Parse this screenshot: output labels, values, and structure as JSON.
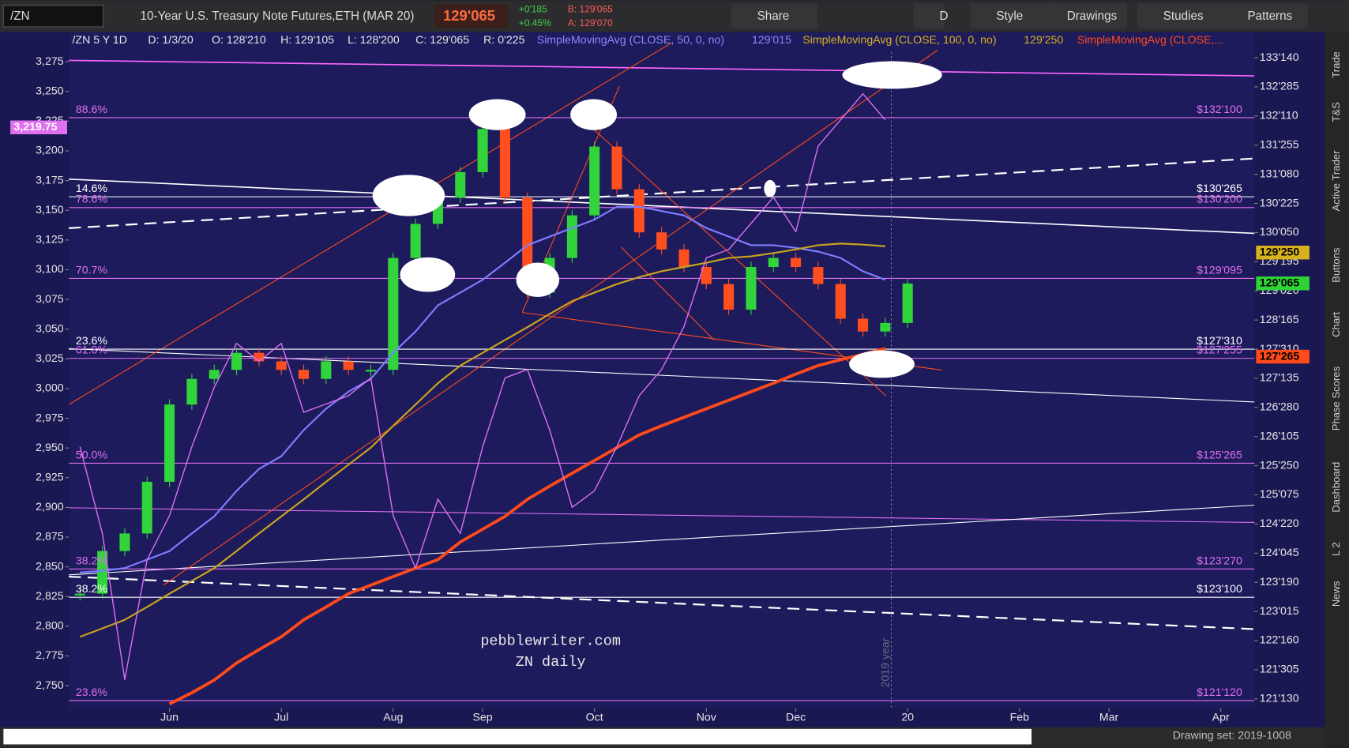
{
  "ui": {
    "symbol": "/ZN",
    "instrument": "10-Year U.S. Treasury Note Futures,ETH (MAR 20)",
    "last": "129'065",
    "change": "+0'185",
    "change_pct": "+0.45%",
    "bid": "B: 129'065",
    "ask": "A: 129'070",
    "toolbar": [
      "Share",
      "D",
      "Style",
      "Drawings",
      "Studies",
      "Patterns"
    ],
    "info": {
      "chart": "/ZN 5 Y 1D",
      "date": "D: 1/3/20",
      "open": "O: 128'210",
      "high": "H: 129'105",
      "low": "L: 128'200",
      "close": "C: 129'065",
      "range": "R: 0'225",
      "sma50_value": "129'015",
      "sma100_value": "129'250"
    },
    "side_tabs": [
      "Trade",
      "T&S",
      "Active Trader",
      "Buttons",
      "Chart",
      "Phase Scores",
      "Dashboard",
      "L 2",
      "News"
    ],
    "drawing_set": "Drawing set: 2019-1008",
    "watermark": [
      "pebblewriter.com",
      "ZN daily"
    ],
    "year_label": "2019 year"
  },
  "chart_data": {
    "type": "candlestick",
    "categories": [
      null,
      null,
      null,
      null,
      "Jun",
      null,
      null,
      null,
      null,
      "Jul",
      null,
      null,
      null,
      null,
      "Aug",
      null,
      null,
      null,
      "Sep",
      null,
      null,
      null,
      null,
      "Oct",
      null,
      null,
      null,
      null,
      "Nov",
      null,
      null,
      null,
      "Dec",
      null,
      null,
      null,
      null,
      "20",
      null,
      null,
      null,
      null,
      "Feb",
      null,
      null,
      null,
      "Mar",
      null,
      null,
      null,
      null,
      "Apr",
      null
    ],
    "series": [
      {
        "name": "/ZN 5 Y 1D",
        "type": "candlestick",
        "axis": "y2",
        "up_color": "#31d43a",
        "down_color": "#ff4f1f",
        "values": [
          123.38,
          124.18,
          124.51,
          125.48,
          126.93,
          127.41,
          127.58,
          127.9,
          127.74,
          127.58,
          127.41,
          127.74,
          127.58,
          127.58,
          129.68,
          130.32,
          130.81,
          131.29,
          132.1,
          130.81,
          129.03,
          129.68,
          130.48,
          131.77,
          130.97,
          130.16,
          129.84,
          129.51,
          129.19,
          128.71,
          129.51,
          129.68,
          129.51,
          129.19,
          128.54,
          128.3,
          128.46,
          129.2,
          null,
          null,
          null,
          null,
          null,
          null,
          null,
          null,
          null,
          null,
          null,
          null,
          null,
          null,
          null
        ]
      },
      {
        "name": "SimpleMovingAvg (CLOSE, 50, 0, no)",
        "type": "line",
        "axis": "y2",
        "color": "#7d7dff",
        "width": 2,
        "values": [
          123.78,
          123.81,
          123.86,
          124.02,
          124.18,
          124.51,
          124.83,
          125.31,
          125.72,
          125.96,
          126.45,
          126.85,
          127.17,
          127.41,
          127.9,
          128.3,
          128.79,
          129.03,
          129.27,
          129.59,
          129.92,
          130.08,
          130.24,
          130.4,
          130.64,
          130.64,
          130.56,
          130.48,
          130.24,
          130.08,
          129.92,
          129.92,
          129.87,
          129.8,
          129.68,
          129.43,
          129.27,
          null,
          null,
          null,
          null,
          null,
          null,
          null,
          null,
          null,
          null,
          null,
          null,
          null,
          null,
          null,
          null
        ]
      },
      {
        "name": "SimpleMovingAvg (CLOSE, 100, 0, no)",
        "type": "line",
        "axis": "y2",
        "color": "#c9a31c",
        "width": 2,
        "values": [
          122.57,
          122.73,
          122.89,
          123.13,
          123.38,
          123.62,
          123.86,
          124.18,
          124.51,
          124.83,
          125.15,
          125.48,
          125.8,
          126.12,
          126.53,
          126.93,
          127.33,
          127.66,
          127.9,
          128.14,
          128.38,
          128.63,
          128.87,
          129.03,
          129.19,
          129.32,
          129.43,
          129.51,
          129.59,
          129.68,
          129.71,
          129.77,
          129.84,
          129.92,
          129.95,
          129.93,
          129.9,
          null,
          null,
          null,
          null,
          null,
          null,
          null,
          null,
          null,
          null,
          null,
          null,
          null,
          null,
          null,
          null
        ]
      },
      {
        "name": "SimpleMovingAvg (CLOSE,...",
        "type": "line",
        "axis": "y2",
        "color": "#ff4a1a",
        "width": 3.5,
        "values": [
          null,
          null,
          null,
          null,
          121.31,
          121.52,
          121.76,
          122.08,
          122.33,
          122.57,
          122.89,
          123.13,
          123.38,
          123.54,
          123.7,
          123.86,
          124.02,
          124.35,
          124.59,
          124.83,
          125.15,
          125.4,
          125.64,
          125.88,
          126.12,
          126.36,
          126.53,
          126.69,
          126.85,
          127.01,
          127.17,
          127.33,
          127.5,
          127.66,
          127.77,
          127.87,
          127.98,
          null,
          null,
          null,
          null,
          null,
          null,
          null,
          null,
          null,
          null,
          null,
          null,
          null,
          null,
          null,
          null
        ]
      },
      {
        "type": "line",
        "axis": "y",
        "color": "#d96ef0",
        "width": 1.3,
        "values": [
          2951,
          2878,
          2755,
          2856,
          2893,
          2951,
          3001,
          3038,
          3023,
          3038,
          2980,
          2987,
          2994,
          3009,
          2893,
          2849,
          2907,
          2878,
          2951,
          3009,
          3016,
          2965,
          2900,
          2914,
          2951,
          2994,
          3016,
          3052,
          3110,
          3117,
          3139,
          3161,
          3132,
          3204,
          3226,
          3248,
          3226,
          null,
          null,
          null,
          null,
          null,
          null,
          null,
          null,
          null,
          null,
          null,
          null,
          null,
          null,
          null,
          null
        ]
      }
    ],
    "ylim": [
      2731,
      3300
    ],
    "yticks": [
      {
        "value": 2750,
        "label": "2,750"
      },
      {
        "value": 2775,
        "label": "2,775"
      },
      {
        "value": 2800,
        "label": "2,800"
      },
      {
        "value": 2825,
        "label": "2,825"
      },
      {
        "value": 2850,
        "label": "2,850"
      },
      {
        "value": 2875,
        "label": "2,875"
      },
      {
        "value": 2900,
        "label": "2,900"
      },
      {
        "value": 2925,
        "label": "2,925"
      },
      {
        "value": 2950,
        "label": "2,950"
      },
      {
        "value": 2975,
        "label": "2,975"
      },
      {
        "value": 3000,
        "label": "3,000"
      },
      {
        "value": 3025,
        "label": "3,025"
      },
      {
        "value": 3050,
        "label": "3,050"
      },
      {
        "value": 3075,
        "label": "3,075"
      },
      {
        "value": 3100,
        "label": "3,100"
      },
      {
        "value": 3125,
        "label": "3,125"
      },
      {
        "value": 3150,
        "label": "3,150"
      },
      {
        "value": 3175,
        "label": "3,175"
      },
      {
        "value": 3200,
        "label": "3,200"
      },
      {
        "value": 3225,
        "label": "3,225"
      },
      {
        "value": 3250,
        "label": "3,250"
      },
      {
        "value": 3275,
        "label": "3,275"
      }
    ],
    "y2lim": [
      121.23,
      133.92
    ],
    "y2ticks": [
      {
        "value": 121.40625,
        "label": "121'130"
      },
      {
        "value": 121.953125,
        "label": "121'305"
      },
      {
        "value": 122.5,
        "label": "122'160"
      },
      {
        "value": 123.046875,
        "label": "123'015"
      },
      {
        "value": 123.59375,
        "label": "123'190"
      },
      {
        "value": 124.140625,
        "label": "124'045"
      },
      {
        "value": 124.6875,
        "label": "124'220"
      },
      {
        "value": 125.234375,
        "label": "125'075"
      },
      {
        "value": 125.78125,
        "label": "125'250"
      },
      {
        "value": 126.328125,
        "label": "126'105"
      },
      {
        "value": 126.875,
        "label": "126'280"
      },
      {
        "value": 127.421875,
        "label": "127'135"
      },
      {
        "value": 127.96875,
        "label": "127'310"
      },
      {
        "value": 128.515625,
        "label": "128'165"
      },
      {
        "value": 129.0625,
        "label": "129'020"
      },
      {
        "value": 129.609375,
        "label": "129'195"
      },
      {
        "value": 130.15625,
        "label": "130'050"
      },
      {
        "value": 130.703125,
        "label": "130'225"
      },
      {
        "value": 131.25,
        "label": "131'080"
      },
      {
        "value": 131.796875,
        "label": "131'255"
      },
      {
        "value": 132.34375,
        "label": "132'110"
      },
      {
        "value": 132.890625,
        "label": "132'285"
      },
      {
        "value": 133.4375,
        "label": "133'140"
      }
    ],
    "levels": [
      {
        "pct": "88.6%",
        "price": {
          "value": 132.3125,
          "label": "$132'100"
        },
        "color": "#e070f0"
      },
      {
        "pct": "14.6%",
        "price": {
          "value": 130.828125,
          "label": "$130'265"
        },
        "color": "#ffffff"
      },
      {
        "pct": "78.6%",
        "price": {
          "value": 130.625,
          "label": "$130'200"
        },
        "color": "#e070f0"
      },
      {
        "pct": "70.7%",
        "price": {
          "value": 129.296875,
          "label": "$129'095"
        },
        "color": "#e070f0"
      },
      {
        "pct": "23.6%",
        "price": {
          "value": 127.96875,
          "label": "$127'310"
        },
        "color": "#ffffff"
      },
      {
        "pct": "61.8%",
        "price": {
          "value": 127.796875,
          "label": "$127'255"
        },
        "color": "#e070f0"
      },
      {
        "pct": "50.0%",
        "price": {
          "value": 125.828125,
          "label": "$125'265"
        },
        "color": "#e070f0"
      },
      {
        "pct": "38.2%",
        "price": {
          "value": 123.84375,
          "label": "$123'270"
        },
        "color": "#e070f0"
      },
      {
        "pct": "38.2%",
        "price": {
          "value": 123.3125,
          "label": "$123'100"
        },
        "color": "#ffffff"
      },
      {
        "pct": "23.6%",
        "price": {
          "value": 121.375,
          "label": "$121'120"
        },
        "color": "#e070f0"
      }
    ],
    "last_flags": [
      {
        "value": 129.78125,
        "label": "129'250",
        "color": "#d8b21e",
        "axis": "y2"
      },
      {
        "value": 129.203125,
        "label": "129'065",
        "color": "#2fd336",
        "axis": "y2"
      },
      {
        "value": 127.828125,
        "label": "127'265",
        "color": "#ff4a1a",
        "axis": "y2"
      },
      {
        "value": 3219.75,
        "label": "3,219.75",
        "color": "#e070f0",
        "axis": "y"
      }
    ]
  }
}
